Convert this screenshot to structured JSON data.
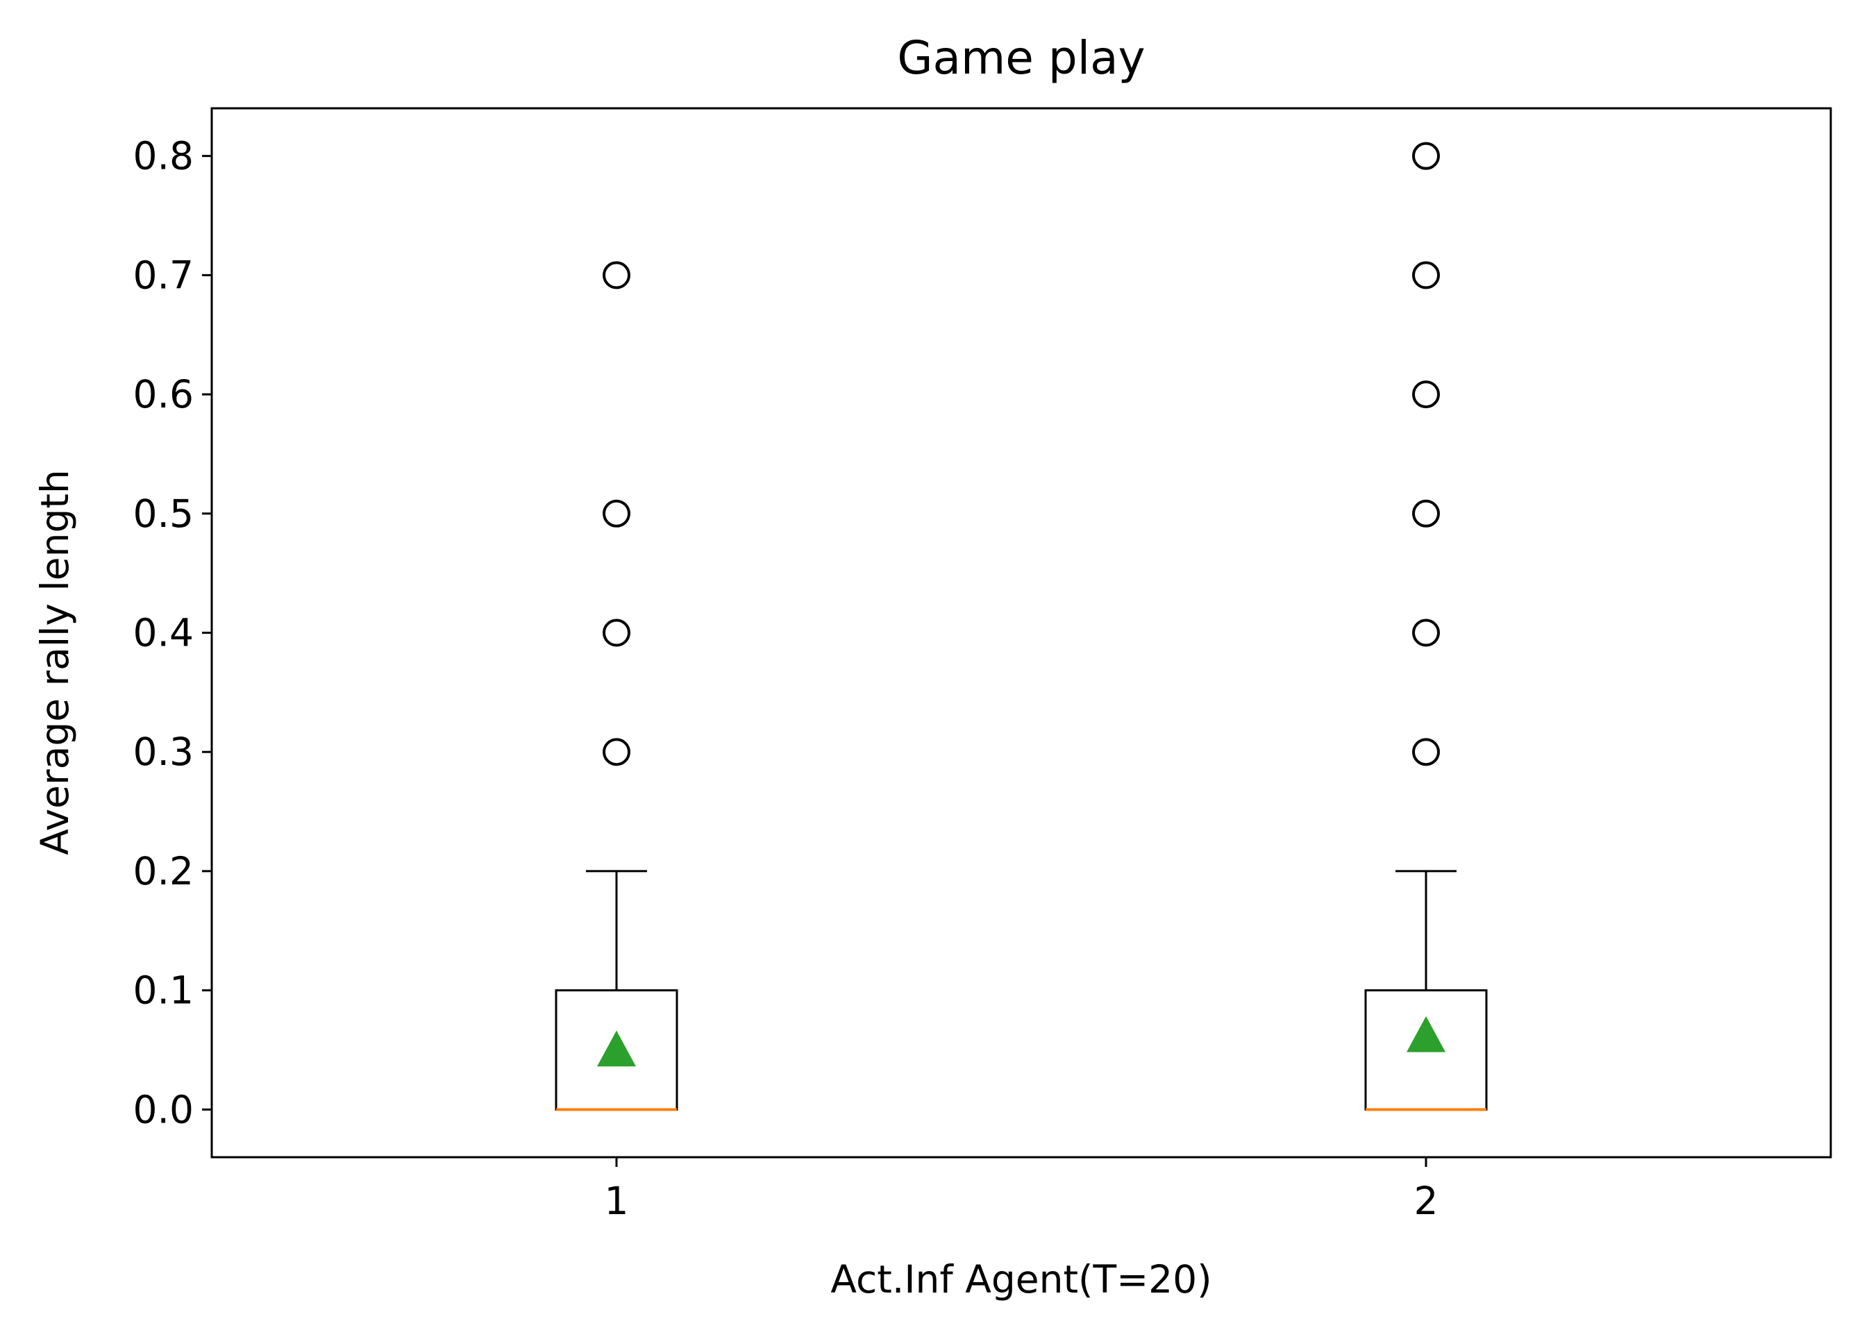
{
  "chart_data": {
    "type": "box",
    "title": "Game play",
    "xlabel": "Act.Inf Agent(T=20)",
    "ylabel": "Average rally length",
    "categories": [
      "1",
      "2"
    ],
    "ylim": [
      -0.04,
      0.84
    ],
    "yticks": [
      "0.0",
      "0.1",
      "0.2",
      "0.3",
      "0.4",
      "0.5",
      "0.6",
      "0.7",
      "0.8"
    ],
    "boxes": [
      {
        "category": "1",
        "q1": 0.0,
        "median": 0.0,
        "q3": 0.1,
        "whisker_low": 0.0,
        "whisker_high": 0.2,
        "mean": 0.05,
        "outliers": [
          0.3,
          0.4,
          0.5,
          0.7
        ]
      },
      {
        "category": "2",
        "q1": 0.0,
        "median": 0.0,
        "q3": 0.1,
        "whisker_low": 0.0,
        "whisker_high": 0.2,
        "mean": 0.062,
        "outliers": [
          0.3,
          0.4,
          0.5,
          0.6,
          0.7,
          0.8
        ]
      }
    ],
    "grid": false,
    "colors": {
      "box": "#000000",
      "median": "#ff7f0e",
      "mean": "#2ca02c",
      "outlier": "#000000"
    }
  }
}
